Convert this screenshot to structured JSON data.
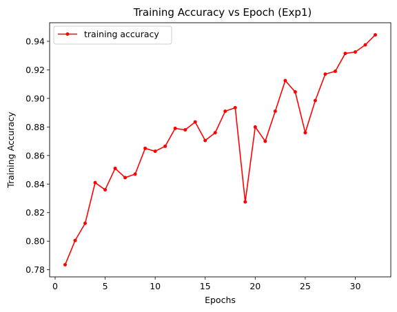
{
  "chart_data": {
    "type": "line",
    "title": "Training Accuracy vs Epoch (Exp1)",
    "xlabel": "Epochs",
    "ylabel": "Training Accuracy",
    "xlim": [
      -0.55,
      33.55
    ],
    "ylim": [
      0.775,
      0.953
    ],
    "xticks": [
      0,
      5,
      10,
      15,
      20,
      25,
      30
    ],
    "yticks": [
      0.78,
      0.8,
      0.82,
      0.84,
      0.86,
      0.88,
      0.9,
      0.92,
      0.94
    ],
    "grid": false,
    "legend_position": "top-left",
    "series": [
      {
        "name": "training accuracy",
        "color": "#ff0000",
        "marker": "point",
        "x": [
          1,
          2,
          3,
          4,
          5,
          6,
          7,
          8,
          9,
          10,
          11,
          12,
          13,
          14,
          15,
          16,
          17,
          18,
          19,
          20,
          21,
          22,
          23,
          24,
          25,
          26,
          27,
          28,
          29,
          30,
          31,
          32
        ],
        "y": [
          0.7835,
          0.8005,
          0.8125,
          0.841,
          0.836,
          0.851,
          0.8445,
          0.847,
          0.865,
          0.863,
          0.8665,
          0.879,
          0.878,
          0.8835,
          0.8705,
          0.876,
          0.891,
          0.8935,
          0.8275,
          0.88,
          0.87,
          0.891,
          0.9125,
          0.9045,
          0.876,
          0.8985,
          0.917,
          0.919,
          0.9315,
          0.9325,
          0.9375,
          0.9445
        ]
      }
    ]
  }
}
